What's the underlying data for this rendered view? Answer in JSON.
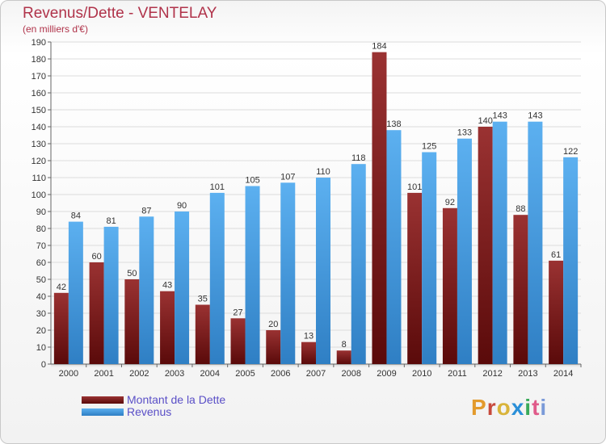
{
  "header": {
    "title": "Revenus/Dette - VENTELAY",
    "subtitle": "(en milliers d'€)"
  },
  "legend": {
    "items": [
      {
        "label": "Montant de la Dette",
        "color": "#7a1a1a"
      },
      {
        "label": "Revenus",
        "color": "#4fa3e6"
      }
    ]
  },
  "logo": {
    "text": "Proxiti",
    "colors": [
      "#e39a2c",
      "#c7493c",
      "#d9b43a",
      "#2a8fd8",
      "#3aaa5a",
      "#e05a8a",
      "#7a9ad8"
    ]
  },
  "chart_data": {
    "type": "bar",
    "categories": [
      "2000",
      "2001",
      "2002",
      "2003",
      "2004",
      "2005",
      "2006",
      "2007",
      "2008",
      "2009",
      "2010",
      "2011",
      "2012",
      "2013",
      "2014"
    ],
    "series": [
      {
        "name": "Montant de la Dette",
        "color": "#7a1a1a",
        "values": [
          42,
          60,
          50,
          43,
          35,
          27,
          20,
          13,
          8,
          184,
          101,
          92,
          140,
          88,
          61
        ]
      },
      {
        "name": "Revenus",
        "color": "#4fa3e6",
        "values": [
          84,
          81,
          87,
          90,
          101,
          105,
          107,
          110,
          118,
          138,
          125,
          133,
          143,
          143,
          122
        ]
      }
    ],
    "ylim": [
      0,
      190
    ],
    "ytick_step": 10,
    "grid": true
  }
}
